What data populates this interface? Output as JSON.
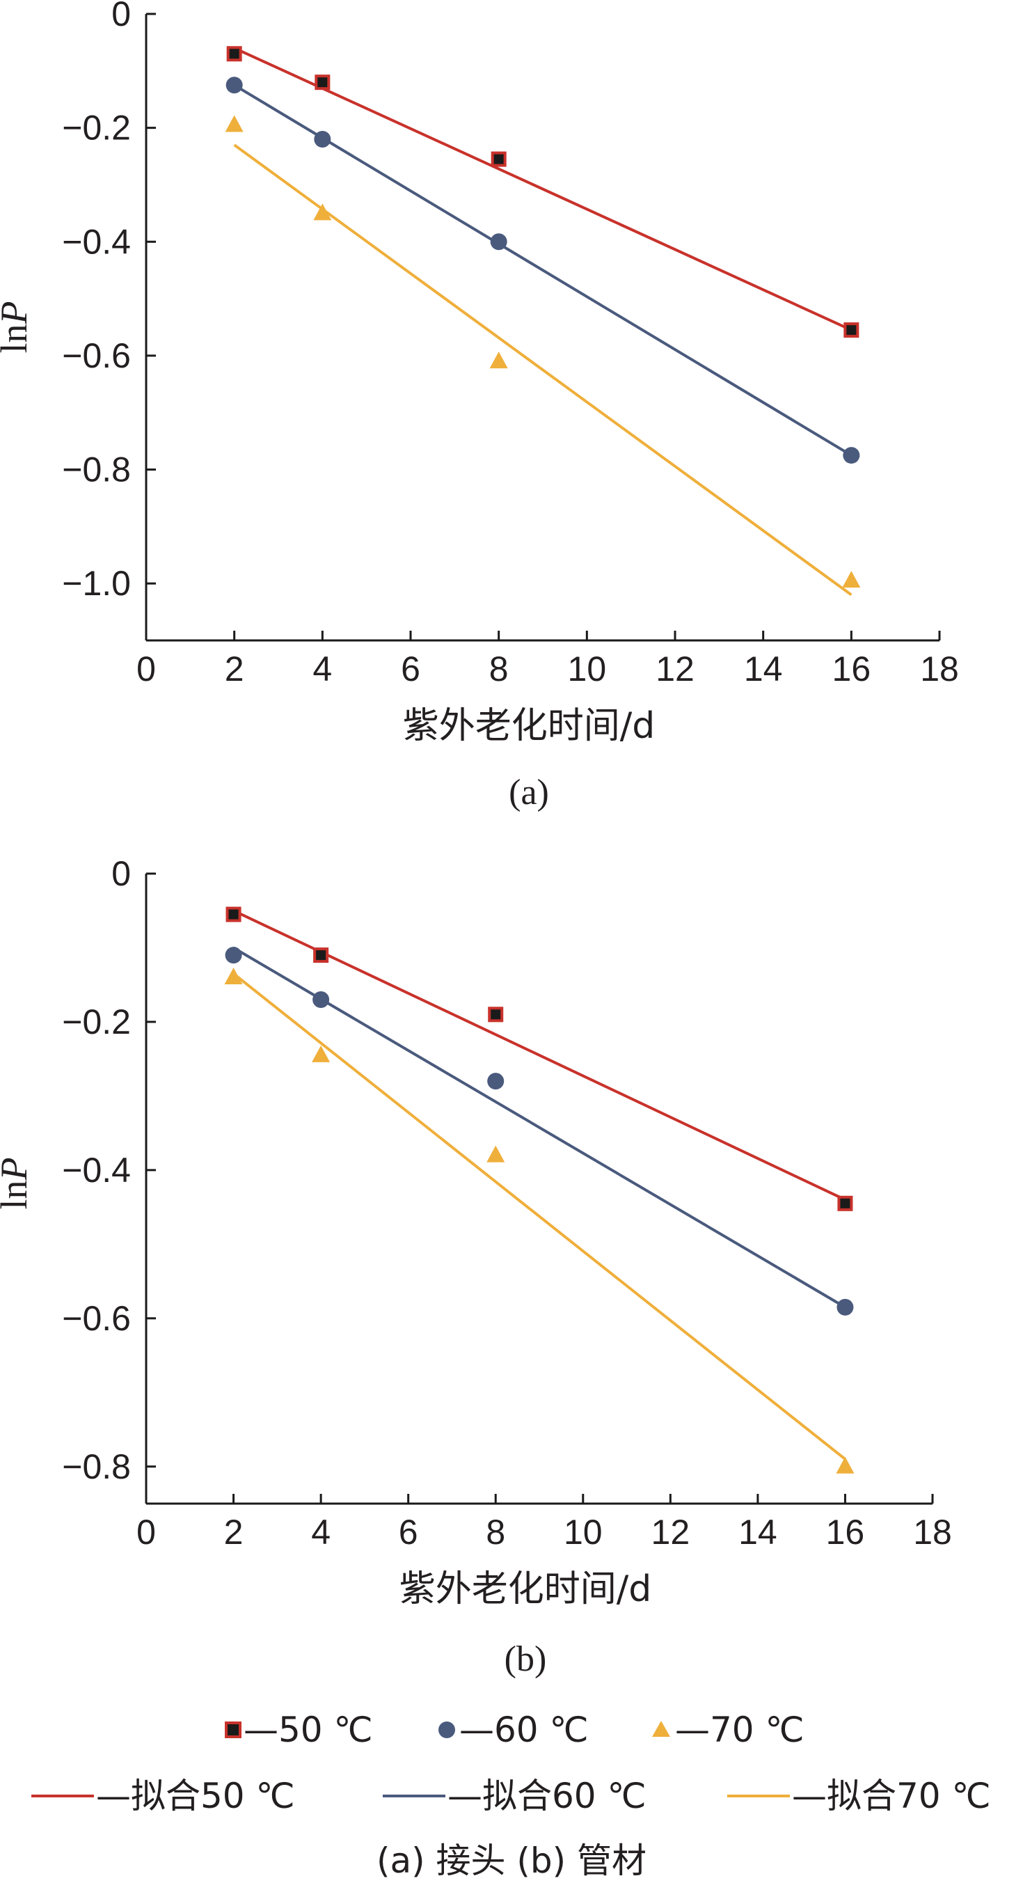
{
  "chart_data": [
    {
      "type": "scatter",
      "panel_label": "(a)",
      "xlabel": "紫外老化时间/d",
      "ylabel": "lnP",
      "xlim": [
        0,
        18
      ],
      "ylim": [
        -1.1,
        0
      ],
      "xticks": [
        "0",
        "2",
        "4",
        "6",
        "8",
        "10",
        "12",
        "14",
        "16",
        "18"
      ],
      "yticks": [
        "0",
        "-0.2",
        "-0.4",
        "-0.6",
        "-0.8",
        "-1.0"
      ],
      "series": [
        {
          "name": "50 ℃",
          "color": "#c8322b",
          "marker": "square",
          "x": [
            2,
            4,
            8,
            16
          ],
          "y": [
            -0.07,
            -0.12,
            -0.255,
            -0.555
          ]
        },
        {
          "name": "60 ℃",
          "color": "#4a5a7d",
          "marker": "circle",
          "x": [
            2,
            4,
            8,
            16
          ],
          "y": [
            -0.125,
            -0.22,
            -0.4,
            -0.775
          ]
        },
        {
          "name": "70 ℃",
          "color": "#efaf3b",
          "marker": "triangle",
          "x": [
            2,
            4,
            8,
            16
          ],
          "y": [
            -0.195,
            -0.35,
            -0.61,
            -0.995
          ]
        }
      ],
      "fits": [
        {
          "name": "拟合50 ℃",
          "color": "#c8322b",
          "x": [
            2,
            16
          ],
          "y": [
            -0.06,
            -0.555
          ]
        },
        {
          "name": "拟合60 ℃",
          "color": "#4a5a7d",
          "x": [
            2,
            16
          ],
          "y": [
            -0.125,
            -0.775
          ]
        },
        {
          "name": "拟合70 ℃",
          "color": "#efaf3b",
          "x": [
            2,
            16
          ],
          "y": [
            -0.23,
            -1.02
          ]
        }
      ]
    },
    {
      "type": "scatter",
      "panel_label": "(b)",
      "xlabel": "紫外老化时间/d",
      "ylabel": "lnP",
      "xlim": [
        0,
        18
      ],
      "ylim": [
        -0.85,
        0
      ],
      "xticks": [
        "0",
        "2",
        "4",
        "6",
        "8",
        "10",
        "12",
        "14",
        "16",
        "18"
      ],
      "yticks": [
        "0",
        "-0.2",
        "-0.4",
        "-0.6",
        "-0.8"
      ],
      "series": [
        {
          "name": "50 ℃",
          "color": "#c8322b",
          "marker": "square",
          "x": [
            2,
            4,
            8,
            16
          ],
          "y": [
            -0.055,
            -0.11,
            -0.19,
            -0.445
          ]
        },
        {
          "name": "60 ℃",
          "color": "#4a5a7d",
          "marker": "circle",
          "x": [
            2,
            4,
            8,
            16
          ],
          "y": [
            -0.11,
            -0.17,
            -0.28,
            -0.585
          ]
        },
        {
          "name": "70 ℃",
          "color": "#efaf3b",
          "marker": "triangle",
          "x": [
            2,
            4,
            8,
            16
          ],
          "y": [
            -0.14,
            -0.245,
            -0.38,
            -0.8
          ]
        }
      ],
      "fits": [
        {
          "name": "拟合50 ℃",
          "color": "#c8322b",
          "x": [
            2,
            16
          ],
          "y": [
            -0.05,
            -0.44
          ]
        },
        {
          "name": "拟合60 ℃",
          "color": "#4a5a7d",
          "x": [
            2,
            16
          ],
          "y": [
            -0.1,
            -0.585
          ]
        },
        {
          "name": "拟合70 ℃",
          "color": "#efaf3b",
          "x": [
            2,
            16
          ],
          "y": [
            -0.135,
            -0.79
          ]
        }
      ]
    }
  ],
  "legend": {
    "markers": [
      {
        "label": "—50 ℃",
        "color": "#c8322b",
        "marker": "square"
      },
      {
        "label": "—60 ℃",
        "color": "#4a5a7d",
        "marker": "circle"
      },
      {
        "label": "—70 ℃",
        "color": "#efaf3b",
        "marker": "triangle"
      }
    ],
    "lines": [
      {
        "label": "—拟合50 ℃",
        "color": "#c8322b"
      },
      {
        "label": "—拟合60 ℃",
        "color": "#4a5a7d"
      },
      {
        "label": "—拟合70 ℃",
        "color": "#efaf3b"
      }
    ]
  },
  "caption": "(a) 接头 (b) 管材"
}
